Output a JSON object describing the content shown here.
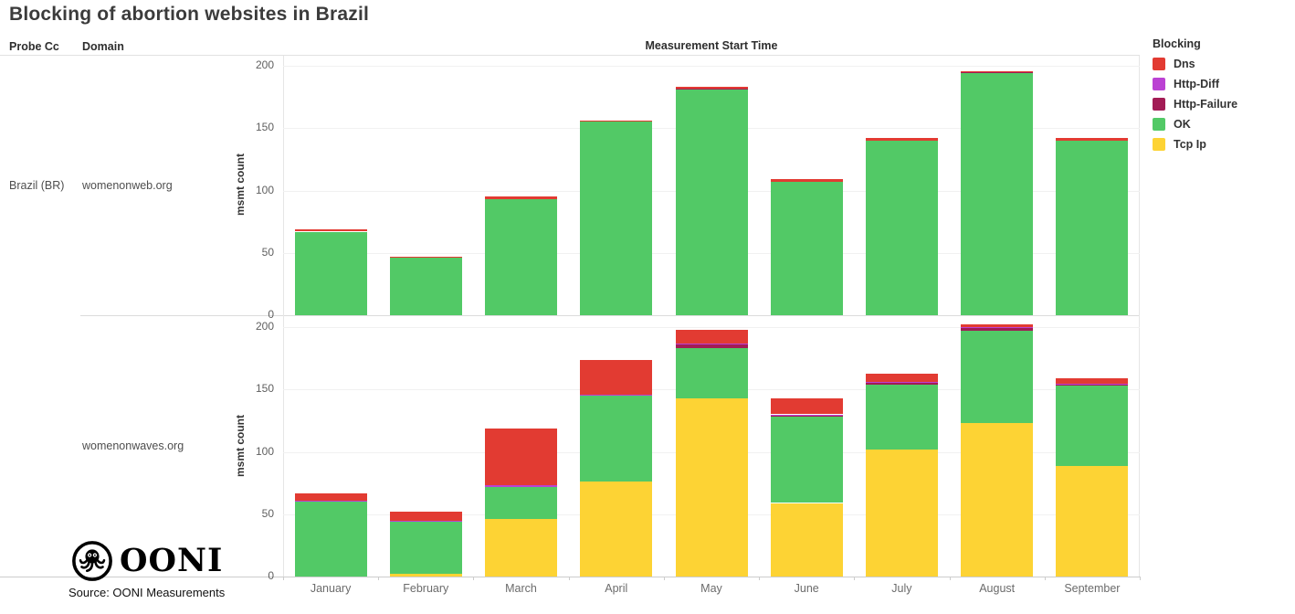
{
  "title": "Blocking of abortion websites in Brazil",
  "columns": {
    "probe_cc_label": "Probe Cc",
    "domain_label": "Domain"
  },
  "rows": {
    "probe_cc": "Brazil (BR)"
  },
  "axis": {
    "x_title": "Measurement Start Time",
    "y_title": "msmt count",
    "y_ticks": [
      0,
      50,
      100,
      150,
      200
    ]
  },
  "legend": {
    "title": "Blocking",
    "position": "top-right",
    "items": [
      {
        "label": "Dns",
        "color": "#e23b32"
      },
      {
        "label": "Http-Diff",
        "color": "#bb42d3"
      },
      {
        "label": "Http-Failure",
        "color": "#a21c55"
      },
      {
        "label": "OK",
        "color": "#52c966"
      },
      {
        "label": "Tcp Ip",
        "color": "#fdd334"
      }
    ]
  },
  "source": "Source: OONI Measurements",
  "logo": {
    "text": "OONI",
    "octopus_icon": "ooni-octopus-icon"
  },
  "chart_data": [
    {
      "type": "bar",
      "stacked": true,
      "facet_probe_cc": "Brazil (BR)",
      "facet_domain": "womenonweb.org",
      "grid": true,
      "ylabel": "msmt count",
      "ylim": [
        0,
        205
      ],
      "categories": [
        "January",
        "February",
        "March",
        "April",
        "May",
        "June",
        "July",
        "August",
        "September"
      ],
      "series": [
        {
          "name": "Tcp Ip",
          "color": "#fdd334",
          "values": [
            0,
            0,
            0,
            0,
            0,
            0,
            0,
            0,
            0
          ]
        },
        {
          "name": "OK",
          "color": "#52c966",
          "values": [
            67,
            46,
            93,
            155,
            181,
            107,
            140,
            194,
            140
          ]
        },
        {
          "name": "Http-Failure",
          "color": "#a21c55",
          "values": [
            0,
            0,
            0,
            0,
            1,
            0,
            0,
            1,
            0
          ]
        },
        {
          "name": "Http-Diff",
          "color": "#bb42d3",
          "values": [
            0,
            0,
            0,
            0,
            0,
            0,
            0,
            0,
            0
          ]
        },
        {
          "name": "Dns",
          "color": "#e23b32",
          "values": [
            2,
            1,
            2,
            1,
            1,
            2,
            2,
            1,
            2
          ]
        }
      ],
      "totals": [
        69,
        47,
        95,
        156,
        183,
        109,
        142,
        196,
        142
      ]
    },
    {
      "type": "bar",
      "stacked": true,
      "facet_probe_cc": "Brazil (BR)",
      "facet_domain": "womenonwaves.org",
      "grid": true,
      "ylabel": "msmt count",
      "ylim": [
        0,
        205
      ],
      "categories": [
        "January",
        "February",
        "March",
        "April",
        "May",
        "June",
        "July",
        "August",
        "September"
      ],
      "series": [
        {
          "name": "Tcp Ip",
          "color": "#fdd334",
          "values": [
            0,
            2,
            46,
            76,
            143,
            59,
            102,
            123,
            89
          ]
        },
        {
          "name": "OK",
          "color": "#52c966",
          "values": [
            60,
            42,
            26,
            69,
            40,
            69,
            52,
            74,
            64
          ]
        },
        {
          "name": "Http-Failure",
          "color": "#a21c55",
          "values": [
            0,
            0,
            0,
            0,
            3,
            1,
            1,
            2,
            1
          ]
        },
        {
          "name": "Http-Diff",
          "color": "#bb42d3",
          "values": [
            1,
            1,
            1,
            1,
            1,
            1,
            1,
            1,
            1
          ]
        },
        {
          "name": "Dns",
          "color": "#e23b32",
          "values": [
            6,
            7,
            46,
            28,
            11,
            13,
            7,
            2,
            4
          ]
        }
      ],
      "totals": [
        67,
        52,
        119,
        174,
        198,
        143,
        163,
        202,
        159
      ]
    }
  ]
}
